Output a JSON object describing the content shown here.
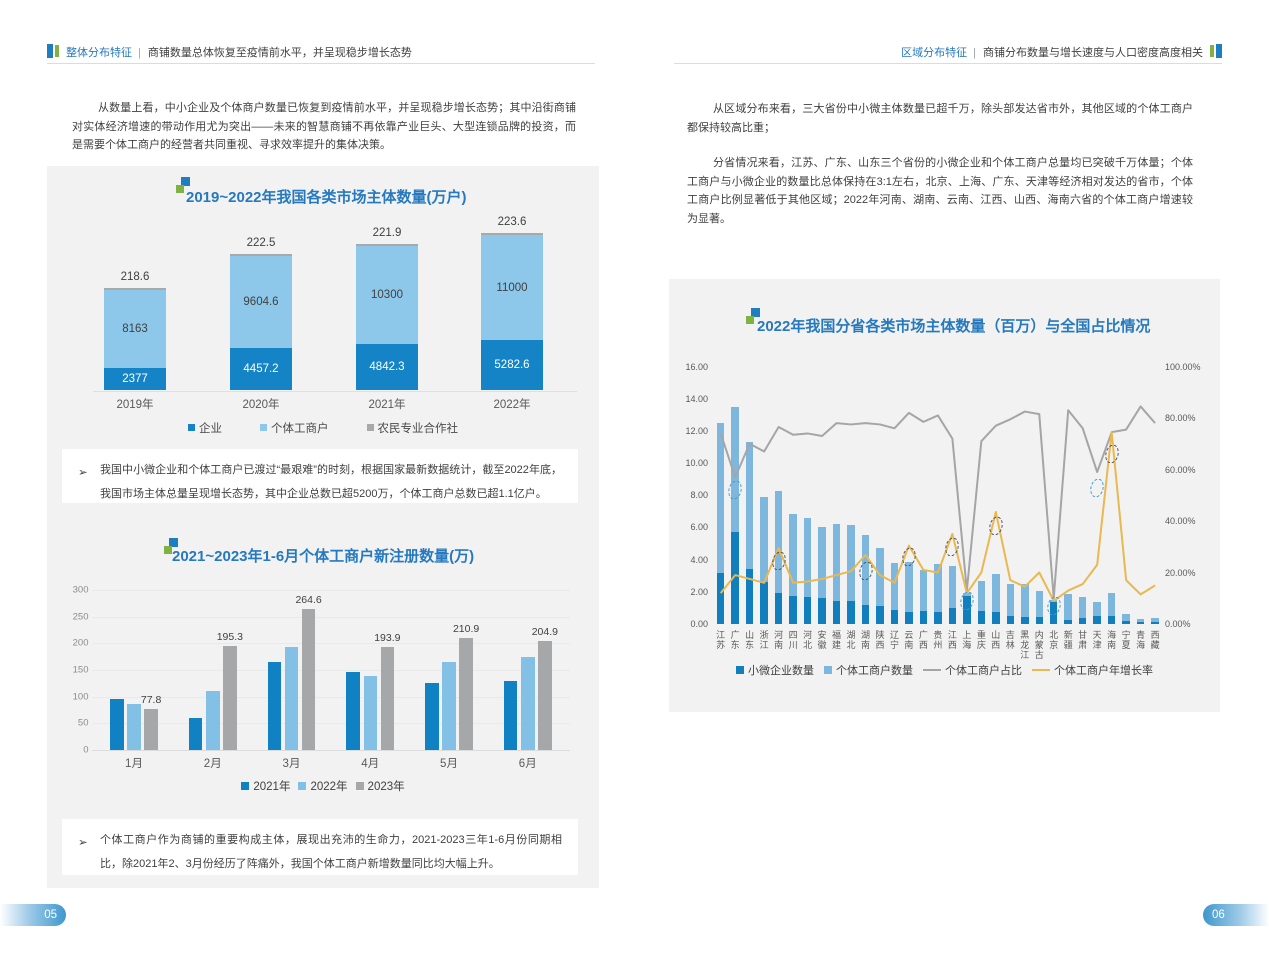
{
  "colors": {
    "accent_blue": "#2679be",
    "header_bar_blue": "#1f7ec0",
    "header_bar_green": "#7fb241",
    "panel_gray": "#f2f2f2",
    "body_text": "#3f3f3f",
    "note_text": "#404040",
    "tick_text": "#7f7f7f",
    "axis_label_text": "#595959",
    "pill_blue": "#3e97ce",
    "annotation_blue": "#3e9ad3",
    "annotation_dark": "#4a5360"
  },
  "pages": {
    "left": {
      "header_section": "整体分布特征",
      "header_sep": "|",
      "header_title": "商铺数量总体恢复至疫情前水平，并呈现稳步增长态势",
      "intro": "从数量上看，中小企业及个体商户数量已恢复到疫情前水平，并呈现稳步增长态势；其中沿街商铺对实体经济增速的带动作用尤为突出——未来的智慧商铺不再依靠产业巨头、大型连锁品牌的投资，而是需要个体工商户的经营者共同重视、寻求效率提升的集体决策。",
      "note1_bullet": "➢",
      "note1": "我国中小微企业和个体工商户已渡过“最艰难”的时刻，根据国家最新数据统计，截至2022年底，我国市场主体总量呈现增长态势，其中企业总数已超5200万，个体工商户总数已超1.1亿户。",
      "note2_bullet": "➢",
      "note2": "个体工商户作为商铺的重要构成主体，展现出充沛的生命力，2021-2023三年1-6月份同期相比，除2021年2、3月份经历了阵痛外，我国个体工商户新增数量同比均大幅上升。",
      "page_number": "05"
    },
    "right": {
      "header_section": "区域分布特征",
      "header_sep": "|",
      "header_title": "商铺分布数量与增长速度与人口密度高度相关",
      "paragraph1": "从区域分布来看，三大省份中小微主体数量已超千万，除头部发达省市外，其他区域的个体工商户都保持较高比重；",
      "paragraph2": "分省情况来看，江苏、广东、山东三个省份的小微企业和个体工商户总量均已突破千万体量；个体工商户与小微企业的数量比总体保持在3:1左右，北京、上海、广东、天津等经济相对发达的省市，个体工商户比例显著低于其他区域；2022年河南、湖南、云南、江西、山西、海南六省的个体工商户增速较为显著。",
      "page_number": "06"
    }
  },
  "chart_data": [
    {
      "id": "market-entities-by-year",
      "type": "stacked-bar",
      "title": "2019~2022年我国各类市场主体数量(万户)",
      "unit": "万户",
      "categories": [
        "2019年",
        "2020年",
        "2021年",
        "2022年"
      ],
      "series": [
        {
          "name": "企业",
          "color": "#1584c6",
          "label_color": "#ffffff",
          "values": [
            2377,
            4457.2,
            4842.3,
            5282.6
          ],
          "labels": [
            "2377",
            "4457.2",
            "4842.3",
            "5282.6"
          ]
        },
        {
          "name": "个体工商户",
          "color": "#8dc8eb",
          "label_color": "#404040",
          "values": [
            8163,
            9604.6,
            10300,
            11000
          ],
          "labels": [
            "8163",
            "9604.6",
            "10300",
            "11000"
          ]
        },
        {
          "name": "农民专业合作社",
          "color": "#a9a9a9",
          "label_color": "#404040",
          "label_position": "top",
          "values": [
            218.6,
            222.5,
            221.9,
            223.6
          ],
          "labels": [
            "218.6",
            "222.5",
            "221.9",
            "223.6"
          ]
        }
      ],
      "axis_hidden": true,
      "legend_position": "bottom"
    },
    {
      "id": "new-registrations-by-month",
      "type": "bar",
      "title": "2021~2023年1-6月个体工商户新注册数量(万)",
      "unit": "万",
      "categories": [
        "1月",
        "2月",
        "3月",
        "4月",
        "5月",
        "6月"
      ],
      "yticks": [
        "0",
        "50",
        "100",
        "150",
        "200",
        "250",
        "300"
      ],
      "ylim": [
        0,
        300
      ],
      "grid": true,
      "series": [
        {
          "name": "2021年",
          "color": "#1082c4",
          "values": [
            96,
            60,
            165,
            147,
            125,
            130
          ]
        },
        {
          "name": "2022年",
          "color": "#82c0e6",
          "values": [
            86,
            110,
            193,
            138,
            165,
            174
          ]
        },
        {
          "name": "2023年",
          "color": "#a6a7a9",
          "show_labels": true,
          "values": [
            77.8,
            195.3,
            264.6,
            193.9,
            210.9,
            204.9
          ],
          "labels": [
            "77.8",
            "195.3",
            "264.6",
            "193.9",
            "210.9",
            "204.9"
          ]
        }
      ],
      "legend_position": "bottom"
    },
    {
      "id": "provincial-market-entities",
      "type": "combo",
      "title": "2022年我国分省各类市场主体数量（百万）与全国占比情况",
      "unit": "百万",
      "left_axis": {
        "lim": [
          0,
          16
        ],
        "ticks": [
          "0.00",
          "2.00",
          "4.00",
          "6.00",
          "8.00",
          "10.00",
          "12.00",
          "14.00",
          "16.00"
        ]
      },
      "right_axis": {
        "lim": [
          0,
          100
        ],
        "ticks": [
          "0.00%",
          "20.00%",
          "40.00%",
          "60.00%",
          "80.00%",
          "100.00%"
        ]
      },
      "categories": [
        "江苏",
        "广东",
        "山东",
        "浙江",
        "河南",
        "四川",
        "河北",
        "安徽",
        "福建",
        "湖北",
        "湖南",
        "陕西",
        "辽宁",
        "云南",
        "广西",
        "贵州",
        "江西",
        "上海",
        "重庆",
        "山西",
        "吉林",
        "黑龙江",
        "内蒙古",
        "北京",
        "新疆",
        "甘肃",
        "天津",
        "海南",
        "宁夏",
        "青海",
        "西藏"
      ],
      "bar_series": [
        {
          "name": "小微企业数量",
          "color": "#117fbe",
          "stack": true,
          "values": [
            3.2,
            5.7,
            3.4,
            2.6,
            1.95,
            1.75,
            1.7,
            1.6,
            1.4,
            1.45,
            1.2,
            1.1,
            0.9,
            0.76,
            0.8,
            0.74,
            1.02,
            1.75,
            0.79,
            0.73,
            0.49,
            0.43,
            0.43,
            1.35,
            0.26,
            0.4,
            0.49,
            0.49,
            0.2,
            0.12,
            0.12
          ]
        },
        {
          "name": "个体工商户数量",
          "color": "#7eb7dd",
          "stack": true,
          "values": [
            9.3,
            7.8,
            7.9,
            5.3,
            6.3,
            5.1,
            4.9,
            4.45,
            4.8,
            4.7,
            4.3,
            3.6,
            2.9,
            3.1,
            2.57,
            3.0,
            2.58,
            0.2,
            1.9,
            2.35,
            2.0,
            2.04,
            1.59,
            0.17,
            1.58,
            1.29,
            0.85,
            1.44,
            0.43,
            0.2,
            0.26
          ]
        }
      ],
      "line_series": [
        {
          "name": "个体工商户占比",
          "color": "#a5a5a5",
          "axis": "right",
          "values": [
            74,
            57,
            70,
            67,
            76.5,
            73.5,
            74,
            73,
            78,
            77.5,
            78,
            77.5,
            76,
            82,
            78.5,
            81,
            72,
            13,
            71,
            77,
            79.5,
            82.5,
            81.5,
            10,
            83,
            76,
            59,
            74.5,
            75.5,
            84.5,
            78
          ]
        },
        {
          "name": "个体工商户年增长率",
          "color": "#e9b850",
          "axis": "right",
          "values": [
            12,
            19,
            17.5,
            16,
            29.5,
            16,
            16.5,
            17.5,
            19,
            20.5,
            26.8,
            19,
            16,
            30.4,
            21,
            20,
            35,
            12,
            20,
            43.5,
            17,
            14.5,
            20,
            9,
            13,
            15.5,
            23,
            74.5,
            17,
            11.5,
            15
          ]
        }
      ],
      "annotations": [
        {
          "category": "广东",
          "value": 52,
          "style": "blue"
        },
        {
          "category": "河南",
          "value": 24.5,
          "style": "dark"
        },
        {
          "category": "湖南",
          "value": 20.5,
          "style": "dark"
        },
        {
          "category": "云南",
          "value": 26,
          "style": "dark"
        },
        {
          "category": "江西",
          "value": 30,
          "style": "dark"
        },
        {
          "category": "上海",
          "value": 9,
          "style": "blue"
        },
        {
          "category": "山西",
          "value": 38,
          "style": "dark"
        },
        {
          "category": "北京",
          "value": 7,
          "style": "blue"
        },
        {
          "category": "天津",
          "value": 53,
          "style": "blue"
        },
        {
          "category": "海南",
          "value": 66,
          "style": "dark"
        }
      ],
      "legend_position": "bottom"
    }
  ]
}
